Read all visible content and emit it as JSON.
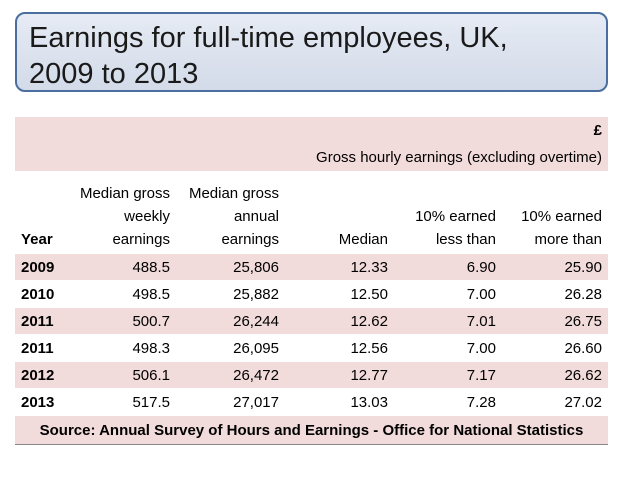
{
  "title": {
    "line1": "Earnings for full-time employees, UK,",
    "line2": "2009 to 2013"
  },
  "table": {
    "unit": "£",
    "caption": "Gross hourly earnings (excluding overtime)",
    "headers": {
      "year": "Year",
      "weekly": [
        "Median gross",
        "weekly",
        "earnings"
      ],
      "annual": [
        "Median gross",
        "annual",
        "earnings"
      ],
      "median": "Median",
      "less": [
        "10% earned",
        "less than"
      ],
      "more": [
        "10% earned",
        "more than"
      ]
    },
    "rows": [
      {
        "year": "2009",
        "weekly": "488.5",
        "annual": "25,806",
        "median": "12.33",
        "less": "6.90",
        "more": "25.90"
      },
      {
        "year": "2010",
        "weekly": "498.5",
        "annual": "25,882",
        "median": "12.50",
        "less": "7.00",
        "more": "26.28"
      },
      {
        "year": "2011",
        "weekly": "500.7",
        "annual": "26,244",
        "median": "12.62",
        "less": "7.01",
        "more": "26.75"
      },
      {
        "year": "2011",
        "weekly": "498.3",
        "annual": "26,095",
        "median": "12.56",
        "less": "7.00",
        "more": "26.60"
      },
      {
        "year": "2012",
        "weekly": "506.1",
        "annual": "26,472",
        "median": "12.77",
        "less": "7.17",
        "more": "26.62"
      },
      {
        "year": "2013",
        "weekly": "517.5",
        "annual": "27,017",
        "median": "13.03",
        "less": "7.28",
        "more": "27.02"
      }
    ],
    "source": "Source: Annual Survey of Hours and Earnings - Office for National Statistics"
  },
  "colors": {
    "band": "#f2dcdb",
    "title_border": "#4a6ea0",
    "title_fill": "#dce3ef"
  }
}
